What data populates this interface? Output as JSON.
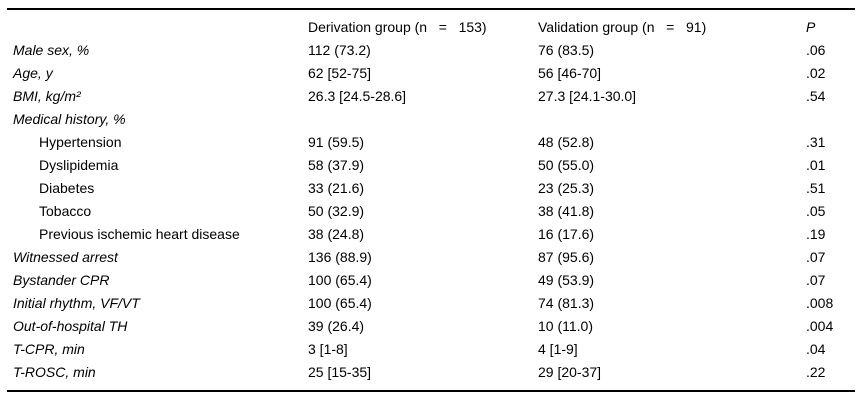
{
  "table": {
    "headers": {
      "label": "",
      "derivation": "Derivation group (n   =   153)",
      "validation": "Validation group (n   =   91)",
      "p": "P"
    },
    "rows": [
      {
        "label": "Male sex, %",
        "derivation": "112 (73.2)",
        "validation": "76 (83.5)",
        "p": ".06"
      },
      {
        "label": "Age, y",
        "derivation": "62 [52-75]",
        "validation": "56 [46-70]",
        "p": ".02"
      },
      {
        "label": "BMI, kg/m²",
        "derivation": "26.3 [24.5-28.6]",
        "validation": "27.3 [24.1-30.0]",
        "p": ".54"
      },
      {
        "label": "Medical history, %",
        "derivation": "",
        "validation": "",
        "p": ""
      },
      {
        "label": "Hypertension",
        "derivation": "91 (59.5)",
        "validation": "48 (52.8)",
        "p": ".31"
      },
      {
        "label": "Dyslipidemia",
        "derivation": "58 (37.9)",
        "validation": "50 (55.0)",
        "p": ".01"
      },
      {
        "label": "Diabetes",
        "derivation": "33 (21.6)",
        "validation": "23 (25.3)",
        "p": ".51"
      },
      {
        "label": "Tobacco",
        "derivation": "50 (32.9)",
        "validation": "38 (41.8)",
        "p": ".05"
      },
      {
        "label": "Previous ischemic heart disease",
        "derivation": "38 (24.8)",
        "validation": "16 (17.6)",
        "p": ".19"
      },
      {
        "label": "Witnessed arrest",
        "derivation": "136 (88.9)",
        "validation": "87 (95.6)",
        "p": ".07"
      },
      {
        "label": "Bystander CPR",
        "derivation": "100 (65.4)",
        "validation": "49 (53.9)",
        "p": ".07"
      },
      {
        "label": "Initial rhythm, VF/VT",
        "derivation": "100 (65.4)",
        "validation": "74 (81.3)",
        "p": ".008"
      },
      {
        "label": "Out-of-hospital TH",
        "derivation": "39 (26.4)",
        "validation": "10 (11.0)",
        "p": ".004"
      },
      {
        "label": "T-CPR, min",
        "derivation": "3 [1-8]",
        "validation": "4 [1-9]",
        "p": ".04"
      },
      {
        "label": "T-ROSC, min",
        "derivation": "25 [15-35]",
        "validation": "29 [20-37]",
        "p": ".22"
      }
    ]
  }
}
